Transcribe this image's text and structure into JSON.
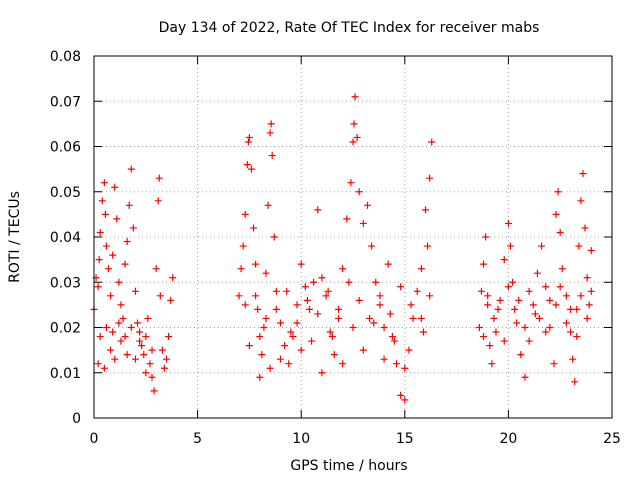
{
  "chart_data": {
    "type": "scatter",
    "title": "Day 134 of 2022, Rate Of TEC Index for receiver mabs",
    "xlabel": "GPS time / hours",
    "ylabel": "ROTI / TECUs",
    "xlim": [
      0,
      25
    ],
    "ylim": [
      0,
      0.08
    ],
    "x_ticks": [
      0,
      5,
      10,
      15,
      20,
      25
    ],
    "x_tick_labels": [
      "0",
      "5",
      "10",
      "15",
      "20",
      "25"
    ],
    "y_ticks": [
      0,
      0.01,
      0.02,
      0.03,
      0.04,
      0.05,
      0.06,
      0.07,
      0.08
    ],
    "y_tick_labels": [
      "0",
      "0.01",
      "0.02",
      "0.03",
      "0.04",
      "0.05",
      "0.06",
      "0.07",
      "0.08"
    ],
    "grid": true,
    "marker": "plus",
    "color": "#ff0000",
    "series": [
      {
        "points": [
          [
            0.0,
            0.024
          ],
          [
            0.1,
            0.031
          ],
          [
            0.2,
            0.029
          ],
          [
            0.25,
            0.035
          ],
          [
            0.3,
            0.041
          ],
          [
            0.4,
            0.048
          ],
          [
            0.5,
            0.052
          ],
          [
            0.55,
            0.045
          ],
          [
            0.6,
            0.038
          ],
          [
            0.7,
            0.033
          ],
          [
            0.8,
            0.027
          ],
          [
            0.9,
            0.036
          ],
          [
            1.0,
            0.051
          ],
          [
            1.1,
            0.044
          ],
          [
            1.2,
            0.03
          ],
          [
            1.3,
            0.025
          ],
          [
            1.4,
            0.022
          ],
          [
            1.5,
            0.034
          ],
          [
            1.6,
            0.039
          ],
          [
            1.7,
            0.047
          ],
          [
            1.8,
            0.055
          ],
          [
            1.9,
            0.042
          ],
          [
            2.0,
            0.028
          ],
          [
            2.1,
            0.021
          ],
          [
            2.2,
            0.019
          ],
          [
            2.3,
            0.016
          ],
          [
            2.4,
            0.014
          ],
          [
            2.5,
            0.018
          ],
          [
            2.6,
            0.022
          ],
          [
            2.7,
            0.012
          ],
          [
            2.8,
            0.009
          ],
          [
            2.9,
            0.006
          ],
          [
            3.0,
            0.033
          ],
          [
            3.1,
            0.048
          ],
          [
            3.15,
            0.053
          ],
          [
            3.2,
            0.027
          ],
          [
            3.3,
            0.015
          ],
          [
            3.4,
            0.011
          ],
          [
            3.5,
            0.013
          ],
          [
            3.6,
            0.018
          ],
          [
            3.7,
            0.026
          ],
          [
            3.8,
            0.031
          ],
          [
            0.2,
            0.012
          ],
          [
            0.5,
            0.011
          ],
          [
            0.8,
            0.015
          ],
          [
            1.0,
            0.013
          ],
          [
            1.3,
            0.017
          ],
          [
            1.6,
            0.014
          ],
          [
            2.0,
            0.013
          ],
          [
            2.5,
            0.01
          ],
          [
            0.3,
            0.018
          ],
          [
            0.6,
            0.02
          ],
          [
            0.9,
            0.019
          ],
          [
            1.2,
            0.021
          ],
          [
            1.5,
            0.018
          ],
          [
            1.8,
            0.02
          ],
          [
            2.2,
            0.017
          ],
          [
            2.8,
            0.015
          ],
          [
            7.0,
            0.027
          ],
          [
            7.1,
            0.033
          ],
          [
            7.2,
            0.038
          ],
          [
            7.3,
            0.045
          ],
          [
            7.4,
            0.056
          ],
          [
            7.45,
            0.061
          ],
          [
            7.5,
            0.062
          ],
          [
            7.6,
            0.055
          ],
          [
            7.7,
            0.042
          ],
          [
            7.8,
            0.034
          ],
          [
            7.9,
            0.024
          ],
          [
            8.0,
            0.018
          ],
          [
            8.1,
            0.014
          ],
          [
            8.2,
            0.02
          ],
          [
            8.3,
            0.032
          ],
          [
            8.4,
            0.047
          ],
          [
            8.5,
            0.063
          ],
          [
            8.55,
            0.065
          ],
          [
            8.6,
            0.058
          ],
          [
            8.7,
            0.04
          ],
          [
            8.8,
            0.028
          ],
          [
            9.0,
            0.021
          ],
          [
            9.2,
            0.016
          ],
          [
            9.4,
            0.012
          ],
          [
            9.6,
            0.018
          ],
          [
            9.8,
            0.025
          ],
          [
            10.0,
            0.034
          ],
          [
            10.2,
            0.029
          ],
          [
            10.4,
            0.024
          ],
          [
            10.6,
            0.03
          ],
          [
            10.8,
            0.046
          ],
          [
            11.0,
            0.031
          ],
          [
            11.2,
            0.027
          ],
          [
            11.4,
            0.019
          ],
          [
            11.6,
            0.014
          ],
          [
            11.8,
            0.022
          ],
          [
            12.0,
            0.033
          ],
          [
            12.2,
            0.044
          ],
          [
            12.4,
            0.052
          ],
          [
            12.5,
            0.061
          ],
          [
            12.55,
            0.065
          ],
          [
            12.6,
            0.071
          ],
          [
            12.7,
            0.062
          ],
          [
            12.8,
            0.05
          ],
          [
            13.0,
            0.043
          ],
          [
            13.2,
            0.047
          ],
          [
            13.4,
            0.038
          ],
          [
            13.6,
            0.03
          ],
          [
            13.8,
            0.025
          ],
          [
            14.0,
            0.02
          ],
          [
            14.2,
            0.034
          ],
          [
            14.4,
            0.018
          ],
          [
            14.6,
            0.012
          ],
          [
            14.8,
            0.005
          ],
          [
            15.0,
            0.004
          ],
          [
            15.2,
            0.015
          ],
          [
            15.4,
            0.022
          ],
          [
            15.6,
            0.028
          ],
          [
            15.8,
            0.033
          ],
          [
            16.0,
            0.046
          ],
          [
            16.2,
            0.053
          ],
          [
            16.3,
            0.061
          ],
          [
            16.1,
            0.038
          ],
          [
            15.9,
            0.019
          ],
          [
            7.5,
            0.016
          ],
          [
            8.0,
            0.009
          ],
          [
            8.5,
            0.011
          ],
          [
            9.0,
            0.013
          ],
          [
            9.5,
            0.019
          ],
          [
            10.0,
            0.015
          ],
          [
            10.5,
            0.017
          ],
          [
            11.0,
            0.01
          ],
          [
            11.5,
            0.018
          ],
          [
            12.0,
            0.012
          ],
          [
            12.5,
            0.02
          ],
          [
            13.0,
            0.015
          ],
          [
            13.5,
            0.021
          ],
          [
            14.0,
            0.013
          ],
          [
            14.5,
            0.017
          ],
          [
            15.0,
            0.011
          ],
          [
            7.3,
            0.025
          ],
          [
            7.8,
            0.027
          ],
          [
            8.3,
            0.022
          ],
          [
            8.8,
            0.024
          ],
          [
            9.3,
            0.028
          ],
          [
            9.8,
            0.021
          ],
          [
            10.3,
            0.026
          ],
          [
            10.8,
            0.023
          ],
          [
            11.3,
            0.028
          ],
          [
            11.8,
            0.024
          ],
          [
            12.3,
            0.03
          ],
          [
            12.8,
            0.026
          ],
          [
            13.3,
            0.022
          ],
          [
            13.8,
            0.027
          ],
          [
            14.3,
            0.023
          ],
          [
            14.8,
            0.029
          ],
          [
            15.3,
            0.025
          ],
          [
            15.8,
            0.022
          ],
          [
            16.2,
            0.027
          ],
          [
            18.6,
            0.02
          ],
          [
            18.7,
            0.028
          ],
          [
            18.8,
            0.034
          ],
          [
            18.9,
            0.04
          ],
          [
            19.0,
            0.025
          ],
          [
            19.1,
            0.016
          ],
          [
            19.2,
            0.012
          ],
          [
            19.4,
            0.019
          ],
          [
            19.6,
            0.026
          ],
          [
            19.8,
            0.035
          ],
          [
            20.0,
            0.043
          ],
          [
            20.1,
            0.038
          ],
          [
            20.2,
            0.03
          ],
          [
            20.4,
            0.021
          ],
          [
            20.6,
            0.014
          ],
          [
            20.8,
            0.009
          ],
          [
            21.0,
            0.017
          ],
          [
            21.2,
            0.025
          ],
          [
            21.4,
            0.032
          ],
          [
            21.6,
            0.038
          ],
          [
            21.8,
            0.029
          ],
          [
            22.0,
            0.02
          ],
          [
            22.2,
            0.012
          ],
          [
            22.3,
            0.045
          ],
          [
            22.4,
            0.05
          ],
          [
            22.5,
            0.041
          ],
          [
            22.6,
            0.033
          ],
          [
            22.8,
            0.027
          ],
          [
            23.0,
            0.019
          ],
          [
            23.1,
            0.013
          ],
          [
            23.2,
            0.008
          ],
          [
            23.3,
            0.024
          ],
          [
            23.4,
            0.038
          ],
          [
            23.5,
            0.048
          ],
          [
            23.6,
            0.054
          ],
          [
            23.7,
            0.042
          ],
          [
            23.8,
            0.031
          ],
          [
            23.9,
            0.025
          ],
          [
            24.0,
            0.037
          ],
          [
            18.8,
            0.018
          ],
          [
            19.3,
            0.022
          ],
          [
            19.8,
            0.017
          ],
          [
            20.3,
            0.024
          ],
          [
            20.8,
            0.02
          ],
          [
            21.3,
            0.023
          ],
          [
            21.8,
            0.019
          ],
          [
            22.3,
            0.025
          ],
          [
            22.8,
            0.021
          ],
          [
            23.3,
            0.018
          ],
          [
            23.8,
            0.022
          ],
          [
            19.0,
            0.027
          ],
          [
            19.5,
            0.024
          ],
          [
            20.0,
            0.029
          ],
          [
            20.5,
            0.026
          ],
          [
            21.0,
            0.028
          ],
          [
            21.5,
            0.022
          ],
          [
            22.0,
            0.026
          ],
          [
            22.5,
            0.029
          ],
          [
            23.0,
            0.024
          ],
          [
            23.5,
            0.027
          ],
          [
            24.0,
            0.028
          ]
        ]
      }
    ]
  }
}
